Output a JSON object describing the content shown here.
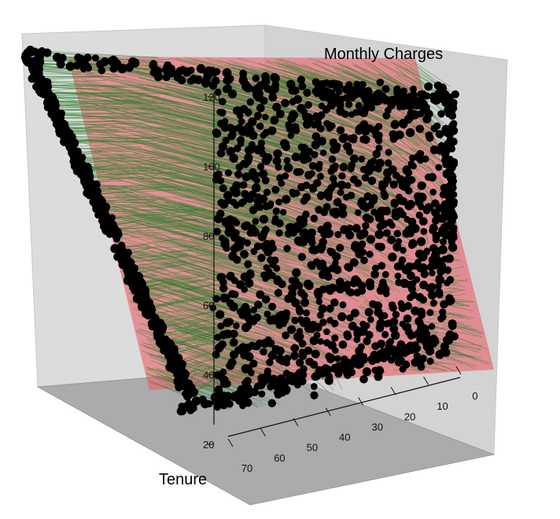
{
  "chart_data": {
    "type": "scatter",
    "projection": "3d",
    "axes": {
      "z": {
        "label": "Monthly Charges",
        "ticks": [
          20,
          40,
          60,
          80,
          100,
          120
        ],
        "range": [
          18,
          120
        ]
      },
      "y": {
        "label": "Tenure",
        "ticks": [
          0,
          10,
          20,
          30,
          40,
          50,
          60,
          70
        ],
        "range": [
          0,
          72
        ]
      },
      "x": {
        "label": "",
        "ticks": [],
        "range": [
          0,
          1
        ]
      }
    },
    "background_walls": true,
    "regression_plane": true,
    "residual_segments": true,
    "colors": {
      "points": "#000000",
      "residual_lines": "#2e7d2e",
      "plane": "#e8616b",
      "wall": "#d9d9d9",
      "floor": "#a9a9a9"
    }
  }
}
